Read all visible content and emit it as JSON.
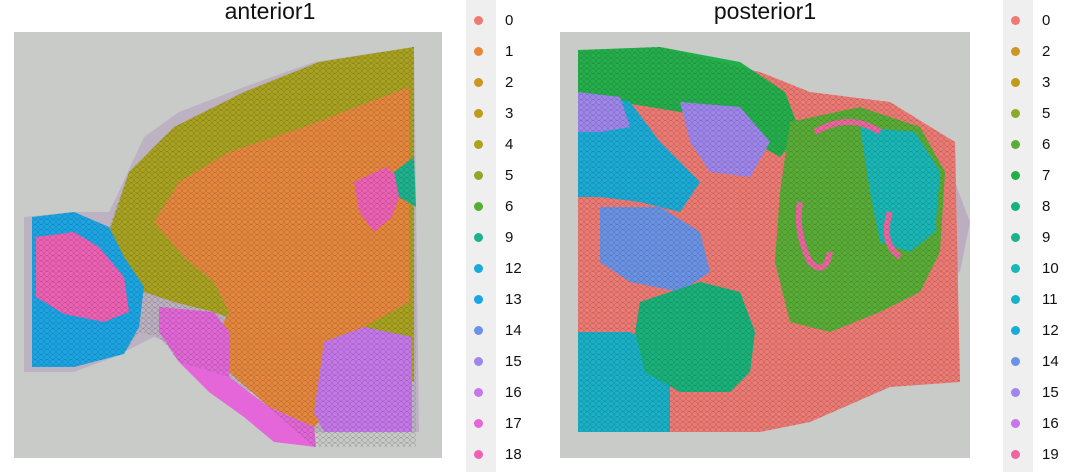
{
  "panels": [
    {
      "title": "anterior1",
      "legend": [
        {
          "label": "0",
          "color": "#F07A73"
        },
        {
          "label": "1",
          "color": "#E8873B"
        },
        {
          "label": "2",
          "color": "#CD9522"
        },
        {
          "label": "3",
          "color": "#C29A1A"
        },
        {
          "label": "4",
          "color": "#A9A31E"
        },
        {
          "label": "5",
          "color": "#8BAA2A"
        },
        {
          "label": "6",
          "color": "#58AE34"
        },
        {
          "label": "9",
          "color": "#1BB38C"
        },
        {
          "label": "12",
          "color": "#18ACD8"
        },
        {
          "label": "13",
          "color": "#18A6E6"
        },
        {
          "label": "14",
          "color": "#6A93E8"
        },
        {
          "label": "15",
          "color": "#9F86EE"
        },
        {
          "label": "16",
          "color": "#C777EC"
        },
        {
          "label": "17",
          "color": "#E466D9"
        },
        {
          "label": "18",
          "color": "#F060B5"
        }
      ]
    },
    {
      "title": "posterior1",
      "legend": [
        {
          "label": "0",
          "color": "#F07A73"
        },
        {
          "label": "2",
          "color": "#CD9522"
        },
        {
          "label": "3",
          "color": "#C29A1A"
        },
        {
          "label": "5",
          "color": "#8BAA2A"
        },
        {
          "label": "6",
          "color": "#58AE34"
        },
        {
          "label": "7",
          "color": "#22B04A"
        },
        {
          "label": "8",
          "color": "#16B37A"
        },
        {
          "label": "9",
          "color": "#1BB38C"
        },
        {
          "label": "10",
          "color": "#16B8B8"
        },
        {
          "label": "11",
          "color": "#16B2C9"
        },
        {
          "label": "12",
          "color": "#18ACD8"
        },
        {
          "label": "14",
          "color": "#6A93E8"
        },
        {
          "label": "15",
          "color": "#9F86EE"
        },
        {
          "label": "16",
          "color": "#C777EC"
        },
        {
          "label": "19",
          "color": "#F065A0"
        }
      ]
    }
  ]
}
